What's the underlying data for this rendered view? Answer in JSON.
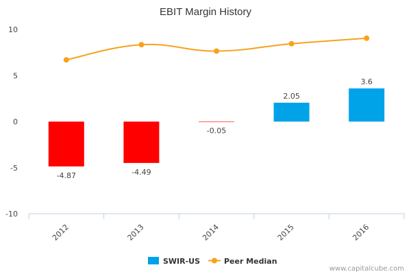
{
  "chart_data": {
    "type": "bar",
    "title": "EBIT Margin History",
    "categories": [
      "2012",
      "2013",
      "2014",
      "2015",
      "2016"
    ],
    "ylim": [
      -10,
      10
    ],
    "yticks": [
      10,
      5,
      0,
      -5,
      -10
    ],
    "series": [
      {
        "name": "SWIR-US",
        "type": "bar",
        "values": [
          -4.87,
          -4.49,
          -0.05,
          2.05,
          3.6
        ],
        "labels": [
          "-4.87",
          "-4.49",
          "-0.05",
          "2.05",
          "3.6"
        ],
        "positive_color": "#00A2E8",
        "negative_color": "#FF0000"
      },
      {
        "name": "Peer Median",
        "type": "line",
        "values": [
          6.7,
          8.35,
          7.65,
          8.45,
          9.05
        ],
        "color": "#F7A21B"
      }
    ],
    "grid": false,
    "legend": "bottom-center"
  },
  "credit": "www.capitalcube.com"
}
